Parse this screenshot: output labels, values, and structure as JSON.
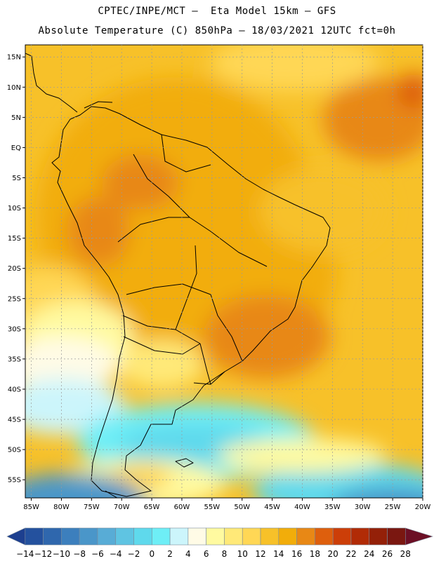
{
  "header": {
    "title_line1": "CPTEC/INPE/MCT –  Eta Model 15km – GFS",
    "title_line2": "Absolute Temperature (C) 850hPa – 18/03/2021 12UTC fct=0h"
  },
  "map": {
    "lat_range": [
      -58,
      17
    ],
    "lon_range": [
      -86,
      -20
    ],
    "lat_ticks": [
      {
        "value": 15,
        "label": "15N"
      },
      {
        "value": 10,
        "label": "10N"
      },
      {
        "value": 5,
        "label": "5N"
      },
      {
        "value": 0,
        "label": "EQ"
      },
      {
        "value": -5,
        "label": "5S"
      },
      {
        "value": -10,
        "label": "10S"
      },
      {
        "value": -15,
        "label": "15S"
      },
      {
        "value": -20,
        "label": "20S"
      },
      {
        "value": -25,
        "label": "25S"
      },
      {
        "value": -30,
        "label": "30S"
      },
      {
        "value": -35,
        "label": "35S"
      },
      {
        "value": -40,
        "label": "40S"
      },
      {
        "value": -45,
        "label": "45S"
      },
      {
        "value": -50,
        "label": "50S"
      },
      {
        "value": -55,
        "label": "55S"
      }
    ],
    "lon_ticks": [
      {
        "value": -85,
        "label": "85W"
      },
      {
        "value": -80,
        "label": "80W"
      },
      {
        "value": -75,
        "label": "75W"
      },
      {
        "value": -70,
        "label": "70W"
      },
      {
        "value": -65,
        "label": "65W"
      },
      {
        "value": -60,
        "label": "60W"
      },
      {
        "value": -55,
        "label": "55W"
      },
      {
        "value": -50,
        "label": "50W"
      },
      {
        "value": -45,
        "label": "45W"
      },
      {
        "value": -40,
        "label": "40W"
      },
      {
        "value": -35,
        "label": "35W"
      },
      {
        "value": -30,
        "label": "30W"
      },
      {
        "value": -25,
        "label": "25W"
      },
      {
        "value": -20,
        "label": "20W"
      }
    ],
    "gridlines": true
  },
  "colorbar": {
    "labels": [
      "-14",
      "-12",
      "-10",
      "-8",
      "-6",
      "-4",
      "-2",
      "0",
      "2",
      "4",
      "6",
      "8",
      "10",
      "12",
      "14",
      "16",
      "18",
      "20",
      "22",
      "24",
      "26",
      "28"
    ],
    "colors": [
      "#1d3f8f",
      "#24519e",
      "#2f67ad",
      "#3c7fbd",
      "#4a96c9",
      "#58acd6",
      "#5fc4e2",
      "#5fd9ec",
      "#6eeef6",
      "#ccf5fb",
      "#fffbe6",
      "#fffaa0",
      "#ffe978",
      "#ffd755",
      "#f7c129",
      "#f2ad0a",
      "#e88815",
      "#de5f0d",
      "#cc3e08",
      "#b12b06",
      "#942008",
      "#7a1710",
      "#6c0f25"
    ]
  }
}
